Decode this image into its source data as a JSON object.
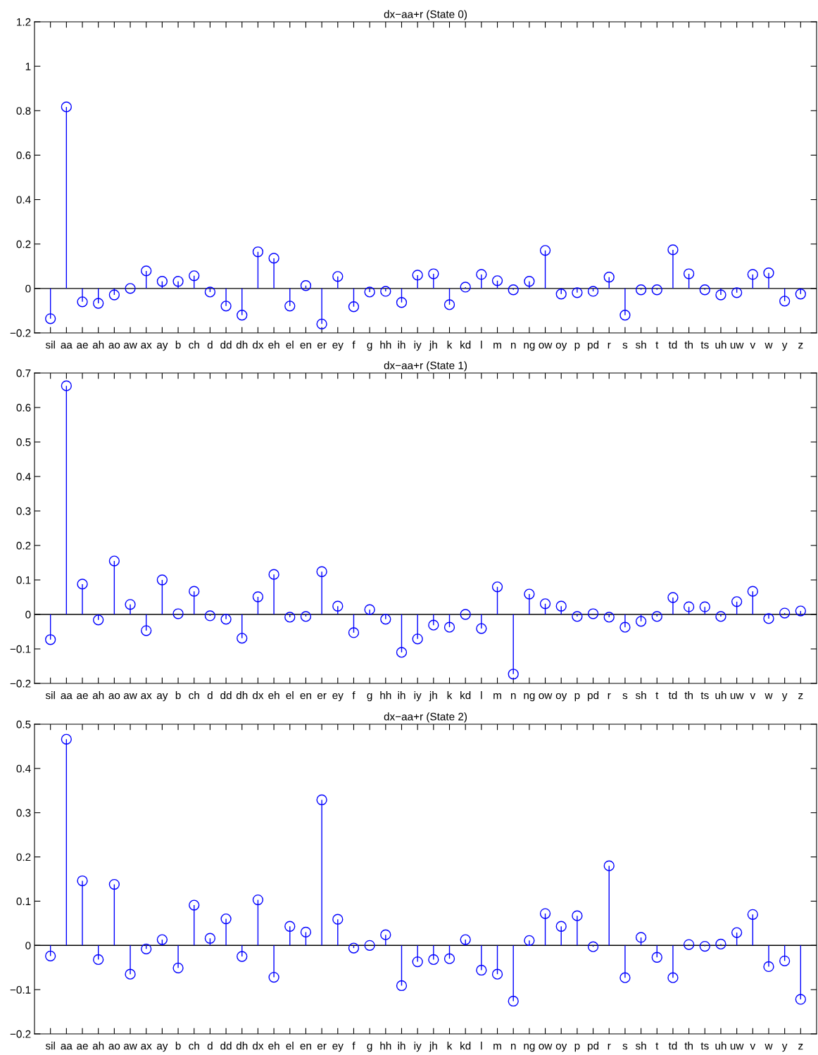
{
  "chart_data": [
    {
      "type": "lollipop",
      "title": "dx−aa+r (State 0)",
      "categories": [
        "sil",
        "aa",
        "ae",
        "ah",
        "ao",
        "aw",
        "ax",
        "ay",
        "b",
        "ch",
        "d",
        "dd",
        "dh",
        "dx",
        "eh",
        "el",
        "en",
        "er",
        "ey",
        "f",
        "g",
        "hh",
        "ih",
        "iy",
        "jh",
        "k",
        "kd",
        "l",
        "m",
        "n",
        "ng",
        "ow",
        "oy",
        "p",
        "pd",
        "r",
        "s",
        "sh",
        "t",
        "td",
        "th",
        "ts",
        "uh",
        "uw",
        "v",
        "w",
        "y",
        "z"
      ],
      "series": [
        {
          "color": "#0000ff",
          "values": [
            -0.136,
            0.817,
            -0.06,
            -0.067,
            -0.029,
            0.0,
            0.079,
            0.032,
            0.032,
            0.057,
            -0.016,
            -0.079,
            -0.12,
            0.165,
            0.136,
            -0.079,
            0.013,
            -0.16,
            0.054,
            -0.082,
            -0.016,
            -0.013,
            -0.063,
            0.06,
            0.066,
            -0.073,
            0.006,
            0.063,
            0.035,
            -0.006,
            0.032,
            0.171,
            -0.025,
            -0.019,
            -0.013,
            0.051,
            -0.12,
            -0.006,
            -0.006,
            0.174,
            0.066,
            -0.006,
            -0.029,
            -0.019,
            0.063,
            0.07,
            -0.057,
            -0.025
          ]
        }
      ],
      "ylim": [
        -0.2,
        1.2
      ],
      "yticks": [
        -0.2,
        0,
        0.2,
        0.4,
        0.6,
        0.8,
        1,
        1.2
      ],
      "ref_lines": [
        {
          "axis": "y",
          "value": 0,
          "color": "#000000"
        }
      ],
      "marker": "circle"
    },
    {
      "type": "lollipop",
      "title": "dx−aa+r (State 1)",
      "categories": [
        "sil",
        "aa",
        "ae",
        "ah",
        "ao",
        "aw",
        "ax",
        "ay",
        "b",
        "ch",
        "d",
        "dd",
        "dh",
        "dx",
        "eh",
        "el",
        "en",
        "er",
        "ey",
        "f",
        "g",
        "hh",
        "ih",
        "iy",
        "jh",
        "k",
        "kd",
        "l",
        "m",
        "n",
        "ng",
        "ow",
        "oy",
        "p",
        "pd",
        "r",
        "s",
        "sh",
        "t",
        "td",
        "th",
        "ts",
        "uh",
        "uw",
        "v",
        "w",
        "y",
        "z"
      ],
      "series": [
        {
          "color": "#0000ff",
          "values": [
            -0.073,
            0.663,
            0.088,
            -0.016,
            0.155,
            0.029,
            -0.047,
            0.1,
            0.002,
            0.067,
            -0.004,
            -0.014,
            -0.069,
            0.051,
            0.116,
            -0.008,
            -0.006,
            0.124,
            0.024,
            -0.053,
            0.014,
            -0.014,
            -0.11,
            -0.071,
            -0.031,
            -0.037,
            0.0,
            -0.041,
            0.08,
            -0.173,
            0.059,
            0.031,
            0.024,
            -0.006,
            0.002,
            -0.008,
            -0.037,
            -0.02,
            -0.006,
            0.049,
            0.022,
            0.022,
            -0.006,
            0.037,
            0.067,
            -0.012,
            0.004,
            0.01
          ]
        }
      ],
      "ylim": [
        -0.2,
        0.7
      ],
      "yticks": [
        -0.2,
        -0.1,
        0,
        0.1,
        0.2,
        0.3,
        0.4,
        0.5,
        0.6,
        0.7
      ],
      "ref_lines": [
        {
          "axis": "y",
          "value": 0,
          "color": "#000000"
        }
      ],
      "marker": "circle"
    },
    {
      "type": "lollipop",
      "title": "dx−aa+r (State 2)",
      "categories": [
        "sil",
        "aa",
        "ae",
        "ah",
        "ao",
        "aw",
        "ax",
        "ay",
        "b",
        "ch",
        "d",
        "dd",
        "dh",
        "dx",
        "eh",
        "el",
        "en",
        "er",
        "ey",
        "f",
        "g",
        "hh",
        "ih",
        "iy",
        "jh",
        "k",
        "kd",
        "l",
        "m",
        "n",
        "ng",
        "ow",
        "oy",
        "p",
        "pd",
        "r",
        "s",
        "sh",
        "t",
        "td",
        "th",
        "ts",
        "uh",
        "uw",
        "v",
        "w",
        "y",
        "z"
      ],
      "series": [
        {
          "color": "#0000ff",
          "values": [
            -0.024,
            0.466,
            0.146,
            -0.032,
            0.138,
            -0.065,
            -0.008,
            0.013,
            -0.051,
            0.091,
            0.016,
            0.06,
            -0.025,
            0.103,
            -0.072,
            0.043,
            0.03,
            0.329,
            0.059,
            -0.006,
            0.0,
            0.024,
            -0.091,
            -0.037,
            -0.032,
            -0.03,
            0.013,
            -0.056,
            -0.065,
            -0.126,
            0.011,
            0.072,
            0.043,
            0.067,
            -0.003,
            0.18,
            -0.073,
            0.018,
            -0.027,
            -0.073,
            0.002,
            -0.002,
            0.003,
            0.029,
            0.07,
            -0.048,
            -0.035,
            -0.122
          ]
        }
      ],
      "ylim": [
        -0.2,
        0.5
      ],
      "yticks": [
        -0.2,
        -0.1,
        0,
        0.1,
        0.2,
        0.3,
        0.4,
        0.5
      ],
      "ref_lines": [
        {
          "axis": "y",
          "value": 0,
          "color": "#000000"
        }
      ],
      "marker": "circle"
    }
  ]
}
